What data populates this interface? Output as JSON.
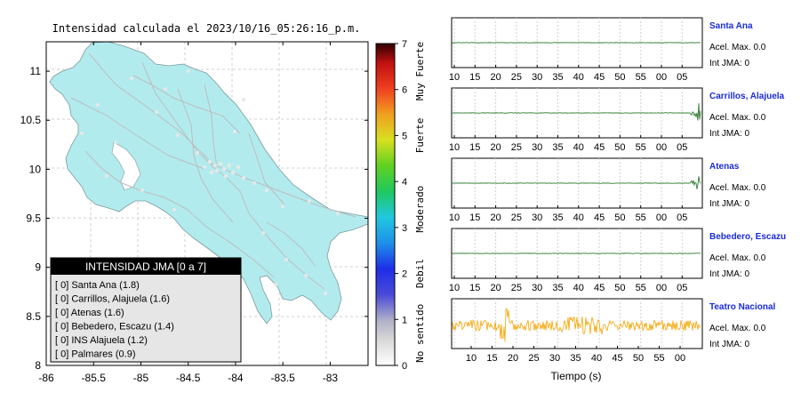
{
  "map": {
    "title": "Intensidad calculada el 2023/10/16_05:26:16_p.m.",
    "x_ticks": [
      "-86",
      "-85.5",
      "-85",
      "-84.5",
      "-84",
      "-83.5",
      "-83"
    ],
    "y_ticks": [
      "11",
      "10.5",
      "10",
      "9.5",
      "9",
      "8.5",
      "8"
    ],
    "land_color": "#b2ebee",
    "legend": {
      "title": "INTENSIDAD JMA [0 a 7]",
      "rows": [
        "[ 0]  Santa Ana (1.8)",
        "[ 0]  Carrillos, Alajuela (1.6)",
        "[ 0]  Atenas (1.6)",
        "[ 0]  Bebedero, Escazu (1.4)",
        "[ 0]  INS Alajuela (1.2)",
        "[ 0]  Palmares (0.9)"
      ]
    }
  },
  "colorbar": {
    "ticks": [
      "0",
      "1",
      "2",
      "3",
      "4",
      "5",
      "6",
      "7"
    ],
    "categories": [
      "No sentido",
      "Debil",
      "Moderado",
      "Fuerte",
      "Muy Fuerte"
    ]
  },
  "traces": {
    "x_ticks": [
      "10",
      "15",
      "20",
      "25",
      "30",
      "35",
      "40",
      "45",
      "50",
      "55",
      "00",
      "05"
    ],
    "x_ticks_last": [
      "10",
      "15",
      "20",
      "25",
      "30",
      "35",
      "40",
      "45",
      "50",
      "55",
      "00"
    ],
    "xlabel": "Tiempo (s)",
    "quiet_color": "#2e7d32",
    "active_color": "#f5a300",
    "stations": [
      {
        "name": "Santa Ana",
        "accel": "Acel. Max. 0.0",
        "jma": "Int JMA: 0"
      },
      {
        "name": "Carrillos, Alajuela",
        "accel": "Acel. Max. 0.0",
        "jma": "Int JMA: 0"
      },
      {
        "name": "Atenas",
        "accel": "Acel. Max. 0.0",
        "jma": "Int JMA: 0"
      },
      {
        "name": "Bebedero, Escazu",
        "accel": "Acel. Max. 0.0",
        "jma": "Int JMA: 0"
      },
      {
        "name": "Teatro Nacional",
        "accel": "Acel. Max. 0.0",
        "jma": "Int JMA: 0"
      }
    ]
  },
  "chart_data": [
    {
      "type": "heatmap",
      "title": "Intensidad calculada el 2023/10/16_05:26:16_p.m.",
      "xlim": [
        -86,
        -82.6
      ],
      "ylim": [
        8,
        11.3
      ],
      "colorbar_range": [
        0,
        7
      ],
      "colorbar_ticks": [
        0,
        1,
        2,
        3,
        4,
        5,
        6,
        7
      ],
      "legend_title": "INTENSIDAD JMA [0 a 7]"
    },
    {
      "type": "line",
      "series": [
        {
          "name": "Santa Ana",
          "peak_accel": 0.0,
          "int_jma": 0
        },
        {
          "name": "Carrillos, Alajuela",
          "peak_accel": 0.0,
          "int_jma": 0
        },
        {
          "name": "Atenas",
          "peak_accel": 0.0,
          "int_jma": 0
        },
        {
          "name": "Bebedero, Escazu",
          "peak_accel": 0.0,
          "int_jma": 0
        },
        {
          "name": "Teatro Nacional",
          "peak_accel": 0.0,
          "int_jma": 0
        }
      ],
      "xlabel": "Tiempo (s)",
      "grid": true
    }
  ]
}
